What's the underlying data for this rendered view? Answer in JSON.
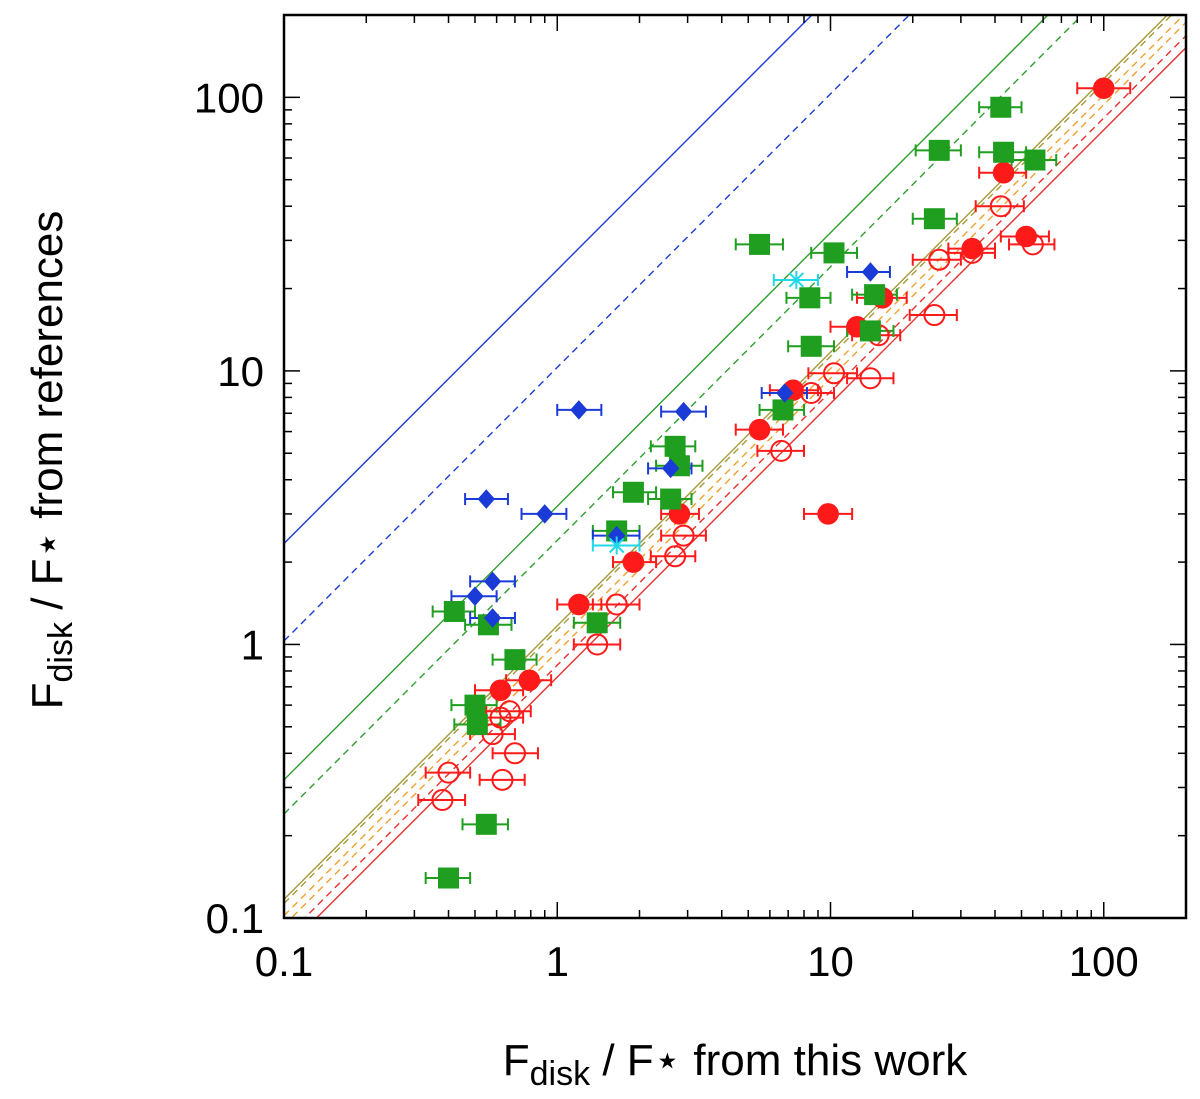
{
  "chart_data": {
    "type": "scatter",
    "xscale": "log",
    "yscale": "log",
    "xlim": [
      0.1,
      200
    ],
    "ylim": [
      0.1,
      200
    ],
    "grid": false,
    "xlabel": {
      "main": "F",
      "sub": "disk",
      "rest": " / F⋆ from this work"
    },
    "ylabel": {
      "main": "F",
      "sub": "disk",
      "rest": " / F⋆ from references"
    },
    "xticks": [
      {
        "value": 0.1,
        "label": "0.1"
      },
      {
        "value": 1,
        "label": "1"
      },
      {
        "value": 10,
        "label": "10"
      },
      {
        "value": 100,
        "label": "100"
      }
    ],
    "yticks": [
      {
        "value": 0.1,
        "label": "0.1"
      },
      {
        "value": 1,
        "label": "1"
      },
      {
        "value": 10,
        "label": "10"
      },
      {
        "value": 100,
        "label": "100"
      }
    ],
    "reference_lines": [
      {
        "name": "blue-solid",
        "color": "#1a3bd6",
        "dash": "solid",
        "factor": 23.4
      },
      {
        "name": "blue-dashed",
        "color": "#1a3bd6",
        "dash": "dashed",
        "factor": 10.3
      },
      {
        "name": "green-solid",
        "color": "#2e9e2e",
        "dash": "solid",
        "factor": 3.2
      },
      {
        "name": "green-dashed",
        "color": "#2e9e2e",
        "dash": "dashed",
        "factor": 2.4
      },
      {
        "name": "olive-solid",
        "color": "#a49a3a",
        "dash": "solid",
        "factor": 1.17
      },
      {
        "name": "olive-dashed",
        "color": "#a49a3a",
        "dash": "dashed",
        "factor": 1.13
      },
      {
        "name": "orange-dashed-1",
        "color": "#f0a030",
        "dash": "dashed",
        "factor": 1.02
      },
      {
        "name": "orange-dashed-2",
        "color": "#f0a030",
        "dash": "dashed",
        "factor": 0.94
      },
      {
        "name": "red-dashed",
        "color": "#e83030",
        "dash": "dashed",
        "factor": 0.84
      },
      {
        "name": "red-solid",
        "color": "#e83030",
        "dash": "solid",
        "factor": 0.76
      }
    ],
    "series": [
      {
        "name": "red-filled-circles",
        "marker": "circle",
        "fill": "#ff1a1a",
        "stroke": "#ff1a1a",
        "points": [
          {
            "x": 100,
            "y": 108,
            "xlo": 80,
            "xhi": 125
          },
          {
            "x": 43,
            "y": 53,
            "xlo": 35,
            "xhi": 52
          },
          {
            "x": 52,
            "y": 31,
            "xlo": 42,
            "xhi": 63
          },
          {
            "x": 33,
            "y": 28,
            "xlo": 27,
            "xhi": 40
          },
          {
            "x": 15.5,
            "y": 18.5,
            "xlo": 12.5,
            "xhi": 19
          },
          {
            "x": 12.5,
            "y": 14.5,
            "xlo": 10,
            "xhi": 15
          },
          {
            "x": 7.3,
            "y": 8.5,
            "xlo": 6,
            "xhi": 9
          },
          {
            "x": 5.5,
            "y": 6.1,
            "xlo": 4.5,
            "xhi": 6.7
          },
          {
            "x": 2.8,
            "y": 3.0,
            "xlo": 2.4,
            "xhi": 3.3
          },
          {
            "x": 9.8,
            "y": 3.0,
            "xlo": 8,
            "xhi": 12
          },
          {
            "x": 1.9,
            "y": 2.0,
            "xlo": 1.6,
            "xhi": 2.3
          },
          {
            "x": 1.2,
            "y": 1.4,
            "xlo": 1.0,
            "xhi": 1.45
          },
          {
            "x": 0.79,
            "y": 0.74,
            "xlo": 0.65,
            "xhi": 0.95
          },
          {
            "x": 0.62,
            "y": 0.68,
            "xlo": 0.5,
            "xhi": 0.75
          }
        ]
      },
      {
        "name": "red-open-circles",
        "marker": "circle-open",
        "fill": "none",
        "stroke": "#ff1a1a",
        "points": [
          {
            "x": 42,
            "y": 40,
            "xlo": 34,
            "xhi": 51
          },
          {
            "x": 55,
            "y": 29,
            "xlo": 45,
            "xhi": 66
          },
          {
            "x": 33,
            "y": 27,
            "xlo": 27,
            "xhi": 40
          },
          {
            "x": 25,
            "y": 25.5,
            "xlo": 20,
            "xhi": 30
          },
          {
            "x": 24,
            "y": 16,
            "xlo": 19.5,
            "xhi": 29
          },
          {
            "x": 15,
            "y": 13.5,
            "xlo": 12,
            "xhi": 18
          },
          {
            "x": 10.3,
            "y": 9.8,
            "xlo": 8.3,
            "xhi": 12.5
          },
          {
            "x": 14,
            "y": 9.4,
            "xlo": 11.5,
            "xhi": 17
          },
          {
            "x": 8.5,
            "y": 8.3,
            "xlo": 7,
            "xhi": 10.3
          },
          {
            "x": 6.6,
            "y": 5.1,
            "xlo": 5.4,
            "xhi": 8
          },
          {
            "x": 2.9,
            "y": 2.5,
            "xlo": 2.4,
            "xhi": 3.5
          },
          {
            "x": 2.7,
            "y": 2.1,
            "xlo": 2.2,
            "xhi": 3.2
          },
          {
            "x": 1.65,
            "y": 1.4,
            "xlo": 1.35,
            "xhi": 2
          },
          {
            "x": 1.4,
            "y": 1.0,
            "xlo": 1.15,
            "xhi": 1.7
          },
          {
            "x": 0.67,
            "y": 0.57,
            "xlo": 0.55,
            "xhi": 0.8
          },
          {
            "x": 0.62,
            "y": 0.54,
            "xlo": 0.51,
            "xhi": 0.75
          },
          {
            "x": 0.58,
            "y": 0.47,
            "xlo": 0.48,
            "xhi": 0.7
          },
          {
            "x": 0.7,
            "y": 0.4,
            "xlo": 0.58,
            "xhi": 0.85
          },
          {
            "x": 0.63,
            "y": 0.32,
            "xlo": 0.52,
            "xhi": 0.76
          },
          {
            "x": 0.4,
            "y": 0.34,
            "xlo": 0.33,
            "xhi": 0.48
          },
          {
            "x": 0.38,
            "y": 0.27,
            "xlo": 0.31,
            "xhi": 0.46
          }
        ]
      },
      {
        "name": "green-squares",
        "marker": "square",
        "fill": "#1f9e1f",
        "stroke": "#1f9e1f",
        "points": [
          {
            "x": 42,
            "y": 92,
            "xlo": 35,
            "xhi": 50
          },
          {
            "x": 25,
            "y": 64,
            "xlo": 20.5,
            "xhi": 30
          },
          {
            "x": 43,
            "y": 63,
            "xlo": 35,
            "xhi": 52
          },
          {
            "x": 56,
            "y": 59,
            "xlo": 46,
            "xhi": 67
          },
          {
            "x": 24,
            "y": 36,
            "xlo": 20,
            "xhi": 29
          },
          {
            "x": 5.5,
            "y": 29,
            "xlo": 4.5,
            "xhi": 6.7
          },
          {
            "x": 10.3,
            "y": 27,
            "xlo": 8.5,
            "xhi": 12.5
          },
          {
            "x": 14.5,
            "y": 19,
            "xlo": 12,
            "xhi": 17.5
          },
          {
            "x": 8.4,
            "y": 18.5,
            "xlo": 6.9,
            "xhi": 10
          },
          {
            "x": 14,
            "y": 14,
            "xlo": 11.5,
            "xhi": 17
          },
          {
            "x": 8.5,
            "y": 12.3,
            "xlo": 7,
            "xhi": 10.3
          },
          {
            "x": 6.7,
            "y": 7.2,
            "xlo": 5.5,
            "xhi": 8
          },
          {
            "x": 2.7,
            "y": 5.3,
            "xlo": 2.2,
            "xhi": 3.2
          },
          {
            "x": 2.8,
            "y": 4.5,
            "xlo": 2.3,
            "xhi": 3.4
          },
          {
            "x": 1.9,
            "y": 3.6,
            "xlo": 1.6,
            "xhi": 2.3
          },
          {
            "x": 2.6,
            "y": 3.4,
            "xlo": 2.15,
            "xhi": 3.1
          },
          {
            "x": 1.65,
            "y": 2.6,
            "xlo": 1.35,
            "xhi": 2
          },
          {
            "x": 0.42,
            "y": 1.32,
            "xlo": 0.35,
            "xhi": 0.5
          },
          {
            "x": 0.56,
            "y": 1.18,
            "xlo": 0.46,
            "xhi": 0.68
          },
          {
            "x": 1.4,
            "y": 1.2,
            "xlo": 1.15,
            "xhi": 1.7
          },
          {
            "x": 0.7,
            "y": 0.88,
            "xlo": 0.58,
            "xhi": 0.84
          },
          {
            "x": 0.5,
            "y": 0.6,
            "xlo": 0.41,
            "xhi": 0.6
          },
          {
            "x": 0.51,
            "y": 0.51,
            "xlo": 0.42,
            "xhi": 0.62
          },
          {
            "x": 0.55,
            "y": 0.22,
            "xlo": 0.45,
            "xhi": 0.66
          },
          {
            "x": 0.4,
            "y": 0.14,
            "xlo": 0.33,
            "xhi": 0.48
          }
        ]
      },
      {
        "name": "blue-diamonds",
        "marker": "diamond",
        "fill": "#1a3bd6",
        "stroke": "#1a3bd6",
        "points": [
          {
            "x": 14,
            "y": 23,
            "xlo": 11.5,
            "xhi": 16.5
          },
          {
            "x": 2.9,
            "y": 7.1,
            "xlo": 2.4,
            "xhi": 3.5
          },
          {
            "x": 1.2,
            "y": 7.2,
            "xlo": 1.0,
            "xhi": 1.45
          },
          {
            "x": 6.8,
            "y": 8.3,
            "xlo": 5.6,
            "xhi": 8.2
          },
          {
            "x": 2.6,
            "y": 4.4,
            "xlo": 2.15,
            "xhi": 3.1
          },
          {
            "x": 0.55,
            "y": 3.4,
            "xlo": 0.46,
            "xhi": 0.66
          },
          {
            "x": 0.9,
            "y": 3.0,
            "xlo": 0.74,
            "xhi": 1.08
          },
          {
            "x": 1.65,
            "y": 2.5,
            "xlo": 1.35,
            "xhi": 2
          },
          {
            "x": 0.58,
            "y": 1.7,
            "xlo": 0.48,
            "xhi": 0.7
          },
          {
            "x": 0.5,
            "y": 1.5,
            "xlo": 0.41,
            "xhi": 0.6
          },
          {
            "x": 0.58,
            "y": 1.25,
            "xlo": 0.48,
            "xhi": 0.7
          }
        ]
      },
      {
        "name": "cyan-stars",
        "marker": "star",
        "fill": "none",
        "stroke": "#20d8ea",
        "points": [
          {
            "x": 7.5,
            "y": 21.5,
            "xlo": 6.2,
            "xhi": 9
          },
          {
            "x": 1.65,
            "y": 2.3,
            "xlo": 1.35,
            "xhi": 2
          }
        ]
      }
    ]
  }
}
